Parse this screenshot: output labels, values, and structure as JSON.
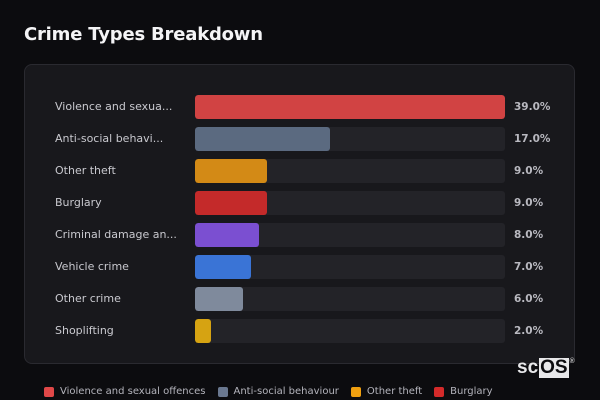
{
  "title": "Crime Types Breakdown",
  "chart_data": {
    "type": "bar",
    "orientation": "horizontal",
    "title": "Crime Types Breakdown",
    "xlabel": "",
    "ylabel": "",
    "xlim": [
      0,
      39
    ],
    "grid": false,
    "legend_position": "bottom",
    "categories": [
      "Violence and sexual offences",
      "Anti-social behaviour",
      "Other theft",
      "Burglary",
      "Criminal damage and arson",
      "Vehicle crime",
      "Other crime",
      "Shoplifting"
    ],
    "display_labels": [
      "Violence and sexua...",
      "Anti-social behavi...",
      "Other theft",
      "Burglary",
      "Criminal damage an...",
      "Vehicle crime",
      "Other crime",
      "Shoplifting"
    ],
    "values": [
      39.0,
      17.0,
      9.0,
      9.0,
      8.0,
      7.0,
      6.0,
      2.0
    ],
    "value_labels": [
      "39.0%",
      "17.0%",
      "9.0%",
      "9.0%",
      "8.0%",
      "7.0%",
      "6.0%",
      "2.0%"
    ],
    "colors": [
      "#d14343",
      "#5b6a80",
      "#d38a16",
      "#c42a2a",
      "#7b4fd1",
      "#3a74d6",
      "#7f8a9c",
      "#d6a312"
    ]
  },
  "rows": [
    {
      "label": "Violence and sexua...",
      "value": 39.0,
      "pct": "39.0%",
      "color": "#d14343"
    },
    {
      "label": "Anti-social behavi...",
      "value": 17.0,
      "pct": "17.0%",
      "color": "#5b6a80"
    },
    {
      "label": "Other theft",
      "value": 9.0,
      "pct": "9.0%",
      "color": "#d38a16"
    },
    {
      "label": "Burglary",
      "value": 9.0,
      "pct": "9.0%",
      "color": "#c42a2a"
    },
    {
      "label": "Criminal damage an...",
      "value": 8.0,
      "pct": "8.0%",
      "color": "#7b4fd1"
    },
    {
      "label": "Vehicle crime",
      "value": 7.0,
      "pct": "7.0%",
      "color": "#3a74d6"
    },
    {
      "label": "Other crime",
      "value": 6.0,
      "pct": "6.0%",
      "color": "#7f8a9c"
    },
    {
      "label": "Shoplifting",
      "value": 2.0,
      "pct": "2.0%",
      "color": "#d6a312"
    }
  ],
  "legend": [
    {
      "label": "Violence and sexual offences",
      "color": "#e04848"
    },
    {
      "label": "Anti-social behaviour",
      "color": "#6a7890"
    },
    {
      "label": "Other theft",
      "color": "#f0a010"
    },
    {
      "label": "Burglary",
      "color": "#d42a2a"
    }
  ],
  "logo": {
    "prefix": "sc",
    "boxed": "OS",
    "mark": "®"
  }
}
